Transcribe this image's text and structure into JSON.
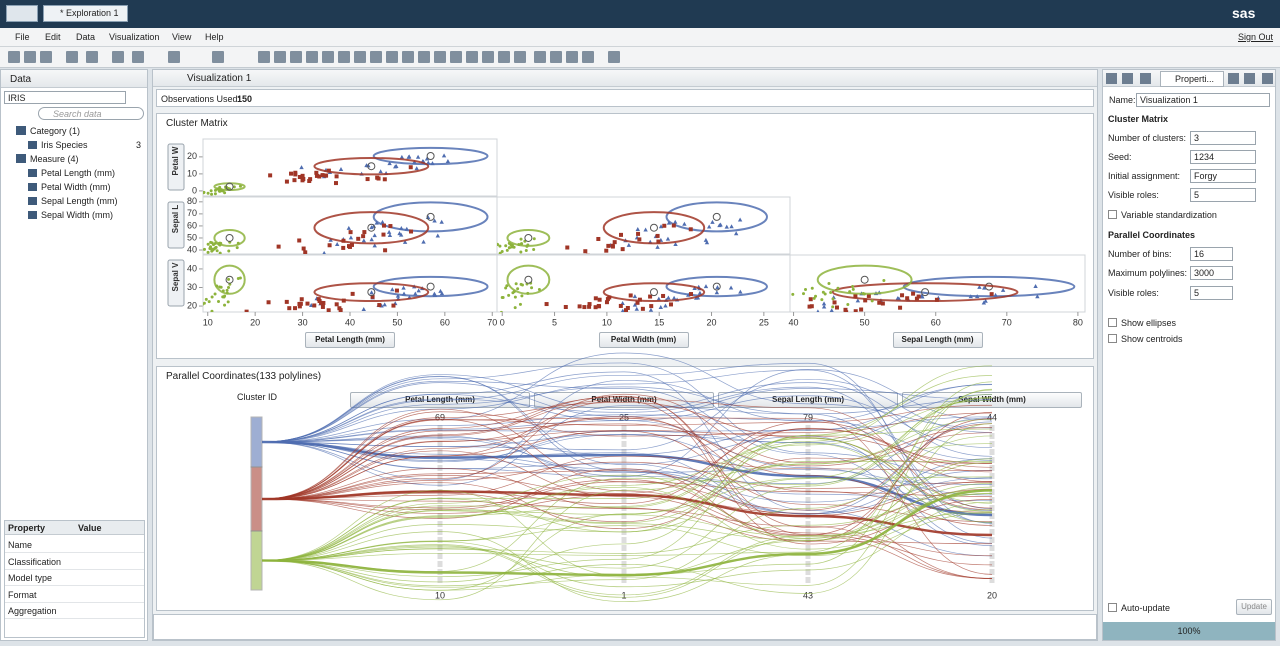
{
  "app_bar": {
    "tab": "* Exploration 1",
    "logo": "sas"
  },
  "menu": {
    "items": [
      "File",
      "Edit",
      "Data",
      "Visualization",
      "View",
      "Help"
    ],
    "sign_out": "Sign Out"
  },
  "data_panel": {
    "title": "Data",
    "source": "IRIS",
    "search_placeholder": "Search data",
    "tree": [
      {
        "label": "Category (1)",
        "children": [
          {
            "label": "Iris Species",
            "count": "3"
          }
        ]
      },
      {
        "label": "Measure (4)",
        "children": [
          {
            "label": "Petal Length (mm)"
          },
          {
            "label": "Petal Width (mm)"
          },
          {
            "label": "Sepal Length (mm)"
          },
          {
            "label": "Sepal Width (mm)"
          }
        ]
      }
    ],
    "properties": {
      "headers": [
        "Property",
        "Value"
      ],
      "rows": [
        "Name",
        "Classification",
        "Model type",
        "Format",
        "Aggregation"
      ]
    }
  },
  "visualization": {
    "title": "Visualization 1",
    "observations_label": "Observations Used:",
    "observations": 150,
    "cluster_matrix": {
      "title": "Cluster Matrix",
      "columns": [
        {
          "label": "Petal Length (mm)",
          "xlim": [
            9,
            71
          ],
          "xticks": [
            10,
            20,
            30,
            40,
            50,
            60,
            70
          ]
        },
        {
          "label": "Petal Width (mm)",
          "xlim": [
            -0.5,
            27.5
          ],
          "xticks": [
            0,
            5,
            10,
            15,
            20,
            25
          ]
        },
        {
          "label": "Sepal Length (mm)",
          "xlim": [
            39.5,
            81
          ],
          "xticks": [
            40,
            50,
            60,
            70,
            80
          ]
        }
      ],
      "rows": [
        {
          "label": "Petal W",
          "ylim": [
            -3,
            30.5
          ],
          "yticks": [
            0,
            10,
            20
          ]
        },
        {
          "label": "Sepal L",
          "ylim": [
            36.7,
            84
          ],
          "yticks": [
            40,
            50,
            60,
            70,
            80
          ]
        },
        {
          "label": "Sepal V",
          "ylim": [
            16.8,
            47.5
          ],
          "yticks": [
            20,
            30,
            40
          ]
        }
      ],
      "clusters": [
        {
          "color": "#4f6db0",
          "centroid": [
            57,
            20.5,
            67.5,
            30.5
          ],
          "spread": [
            6,
            2.4,
            6,
            2.6
          ]
        },
        {
          "color": "#a03526",
          "centroid": [
            44.5,
            14.5,
            58.5,
            27.5
          ],
          "spread": [
            6,
            2.4,
            6.5,
            2.4
          ]
        },
        {
          "color": "#8db33c",
          "centroid": [
            14.6,
            2.5,
            50,
            34.2
          ],
          "spread": [
            1.6,
            1,
            3.3,
            3.8
          ]
        }
      ]
    },
    "parallel": {
      "title": "Parallel Coordinates(133 polylines)",
      "cluster_label": "Cluster ID",
      "axes": [
        {
          "label": "Petal Length (mm)",
          "top": 69,
          "bottom": 10
        },
        {
          "label": "Petal Width (mm)",
          "top": 25,
          "bottom": 1
        },
        {
          "label": "Sepal Length (mm)",
          "top": 79,
          "bottom": 43
        },
        {
          "label": "Sepal Width (mm)",
          "top": 44,
          "bottom": 20
        }
      ]
    }
  },
  "properties_panel": {
    "tab": "Properti...",
    "name_label": "Name:",
    "name_value": "Visualization 1",
    "cluster_section": "Cluster Matrix",
    "clusters_label": "Number of clusters:",
    "clusters_value": 3,
    "seed_label": "Seed:",
    "seed_value": 1234,
    "assignment_label": "Initial assignment:",
    "assignment_value": "Forgy",
    "roles_label": "Visible roles:",
    "roles_value": 5,
    "standardization": "Variable standardization",
    "parallel_section": "Parallel Coordinates",
    "bins_label": "Number of bins:",
    "bins_value": 16,
    "polylines_label": "Maximum polylines:",
    "polylines_value": 3000,
    "proles_label": "Visible roles:",
    "proles_value": 5,
    "show_ellipses": "Show ellipses",
    "show_centroids": "Show centroids",
    "auto_update": "Auto-update",
    "update": "Update",
    "zoom": "100%"
  }
}
